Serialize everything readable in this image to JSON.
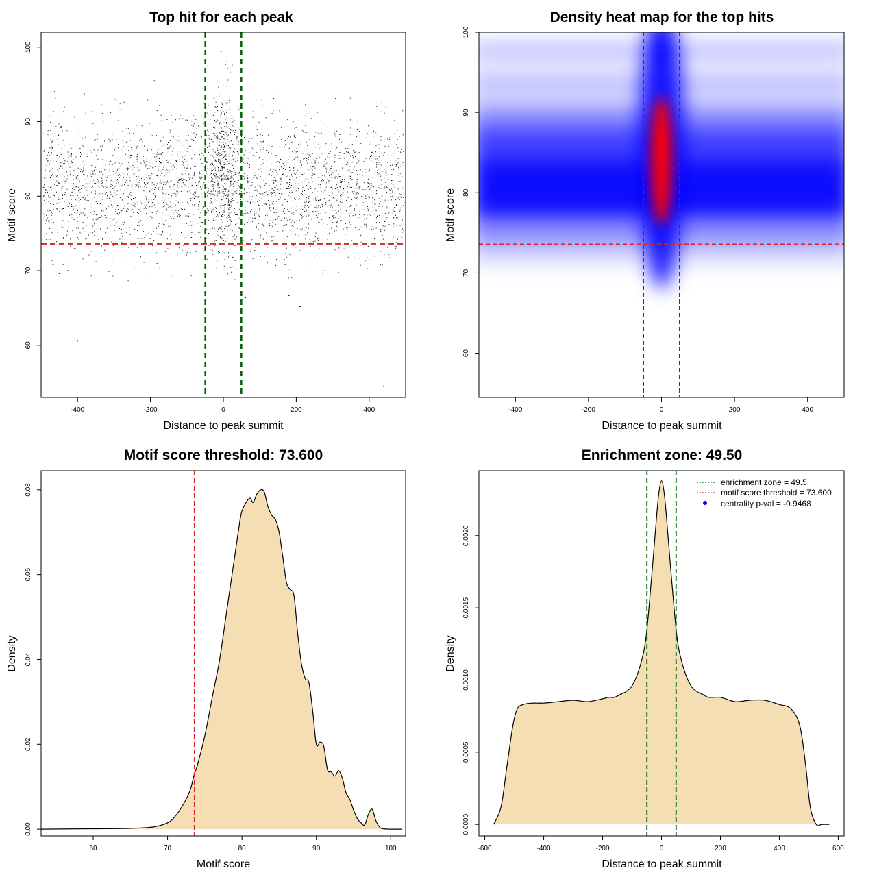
{
  "colors": {
    "threshold": "#dd2222",
    "zone": "#006400",
    "fill": "#f5deb3",
    "dot": "#000000",
    "heat_low": "#0000ff",
    "heat_high": "#ff0000",
    "legend_point": "#0000ff"
  },
  "chart_data": [
    {
      "id": "scatter",
      "type": "scatter",
      "title": "Top hit for each peak",
      "xlabel": "Distance to peak summit",
      "ylabel": "Motif score",
      "xlim": [
        -500,
        500
      ],
      "ylim": [
        53,
        102
      ],
      "xticks": [
        -400,
        -200,
        0,
        200,
        400
      ],
      "yticks": [
        60,
        70,
        80,
        90,
        100
      ],
      "threshold": 73.6,
      "zone": [
        -49.5,
        49.5
      ],
      "outliers": [
        {
          "x": -400,
          "y": 60.6
        },
        {
          "x": 440,
          "y": 54.5
        },
        {
          "x": 210,
          "y": 65.2
        },
        {
          "x": 180,
          "y": 66.7
        },
        {
          "x": 60,
          "y": 66.4
        }
      ]
    },
    {
      "id": "heatmap",
      "type": "heatmap",
      "title": "Density heat map for the top hits",
      "xlabel": "Distance to peak summit",
      "ylabel": "Motif score",
      "xlim": [
        -500,
        500
      ],
      "ylim": [
        54.5,
        100
      ],
      "xticks": [
        -400,
        -200,
        0,
        200,
        400
      ],
      "yticks": [
        60,
        70,
        80,
        90,
        100
      ],
      "threshold": 73.6,
      "zone": [
        -49.5,
        49.5
      ]
    },
    {
      "id": "score_density",
      "type": "area",
      "title": "Motif score threshold: 73.600",
      "xlabel": "Motif score",
      "ylabel": "Density",
      "xlim": [
        53,
        102
      ],
      "ylim": [
        -0.0016,
        0.0845
      ],
      "xticks": [
        60,
        70,
        80,
        90,
        100
      ],
      "yticks": [
        0.0,
        0.02,
        0.04,
        0.06,
        0.08
      ],
      "yticklabels": [
        "0.00",
        "0.02",
        "0.04",
        "0.06",
        "0.08"
      ],
      "threshold": 73.6,
      "x": [
        53,
        60,
        65,
        68,
        70,
        71,
        72,
        73,
        73.6,
        74,
        75,
        76,
        77,
        78,
        79,
        79.5,
        80,
        81,
        81.5,
        82,
        82.5,
        83,
        83.5,
        84,
        84.5,
        85,
        85.5,
        86,
        86.5,
        87,
        87.5,
        88,
        88.5,
        89,
        89.5,
        90,
        90.5,
        91,
        91.5,
        92,
        92.5,
        93,
        93.5,
        94,
        94.5,
        95,
        95.5,
        96,
        96.5,
        97,
        97.5,
        98,
        98.5,
        99,
        100,
        101.5
      ],
      "y": [
        0.0,
        0.0001,
        0.0002,
        0.0005,
        0.0015,
        0.003,
        0.0055,
        0.009,
        0.013,
        0.015,
        0.022,
        0.031,
        0.04,
        0.052,
        0.064,
        0.07,
        0.075,
        0.078,
        0.077,
        0.079,
        0.08,
        0.0795,
        0.076,
        0.074,
        0.073,
        0.07,
        0.064,
        0.058,
        0.0565,
        0.055,
        0.046,
        0.039,
        0.0355,
        0.0345,
        0.028,
        0.02,
        0.0205,
        0.0195,
        0.014,
        0.0135,
        0.0125,
        0.0138,
        0.012,
        0.0085,
        0.007,
        0.0045,
        0.0025,
        0.0015,
        0.001,
        0.0035,
        0.0047,
        0.002,
        0.0005,
        0.0001,
        0.0,
        0.0
      ],
      "ymax_peak": 0.08
    },
    {
      "id": "distance_density",
      "type": "area",
      "title": "Enrichment zone: 49.50",
      "xlabel": "Distance to peak summit",
      "ylabel": "Density",
      "xlim": [
        -620,
        620
      ],
      "ylim": [
        -8e-05,
        0.00245
      ],
      "xticks": [
        -600,
        -400,
        -200,
        0,
        200,
        400,
        600
      ],
      "yticks": [
        0.0,
        0.0005,
        0.001,
        0.0015,
        0.002
      ],
      "yticklabels": [
        "0.0000",
        "0.0005",
        "0.0010",
        "0.0015",
        "0.0020"
      ],
      "zone": [
        -49.5,
        49.5
      ],
      "x": [
        -570,
        -545,
        -525,
        -505,
        -490,
        -470,
        -440,
        -400,
        -350,
        -300,
        -250,
        -200,
        -180,
        -160,
        -140,
        -120,
        -100,
        -80,
        -60,
        -50,
        -40,
        -30,
        -20,
        -10,
        0,
        10,
        20,
        30,
        40,
        50,
        60,
        80,
        100,
        120,
        140,
        160,
        200,
        250,
        300,
        350,
        400,
        440,
        470,
        490,
        505,
        525,
        545,
        570
      ],
      "y": [
        0.0,
        0.00012,
        0.0004,
        0.00068,
        0.0008,
        0.00083,
        0.00084,
        0.00084,
        0.00085,
        0.00086,
        0.00085,
        0.00087,
        0.00088,
        0.00088,
        0.0009,
        0.00092,
        0.00096,
        0.00105,
        0.0012,
        0.00134,
        0.00156,
        0.0018,
        0.00205,
        0.00228,
        0.00238,
        0.00228,
        0.00205,
        0.0018,
        0.00156,
        0.00134,
        0.0012,
        0.00105,
        0.00096,
        0.00092,
        0.0009,
        0.00088,
        0.00088,
        0.00085,
        0.00086,
        0.00086,
        0.00083,
        0.0008,
        0.00068,
        0.0004,
        0.00012,
        0.0,
        0.0,
        0.0
      ],
      "legend": [
        {
          "label": "enrichment zone = 49.5",
          "style": "dotted-green"
        },
        {
          "label": "motif score threshold = 73.600",
          "style": "dotted-red"
        },
        {
          "label": "centrality p-val = -0.9468",
          "style": "blue-point"
        }
      ]
    }
  ]
}
